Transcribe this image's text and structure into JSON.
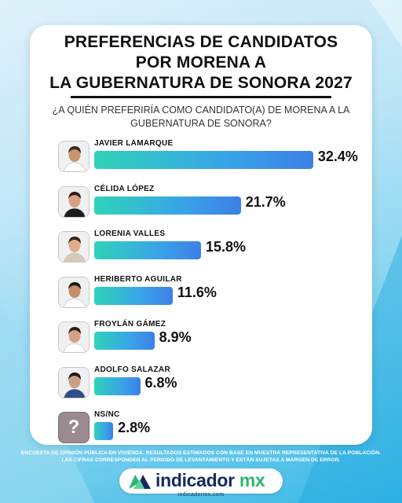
{
  "title": {
    "line1": "PREFERENCIAS DE CANDIDATOS",
    "line2": "POR MORENA A",
    "line3": "LA GUBERNATURA DE SONORA 2027"
  },
  "question": {
    "line1": "¿A QUIÉN PREFERIRÍA COMO CANDIDATO(A) DE MORENA A LA",
    "line2": "GUBERNATURA DE SONORA?"
  },
  "chart_data": {
    "type": "bar",
    "orientation": "horizontal",
    "categories": [
      "JAVIER LAMARQUE",
      "CÉLIDA LÓPEZ",
      "LORENIA VALLES",
      "HERIBERTO AGUILAR",
      "FROYLÁN GÁMEZ",
      "ADOLFO SALAZAR",
      "NS/NC"
    ],
    "values": [
      32.4,
      21.7,
      15.8,
      11.6,
      8.9,
      6.8,
      2.8
    ],
    "labels": [
      "32.4%",
      "21.7%",
      "15.8%",
      "11.6%",
      "8.9%",
      "6.8%",
      "2.8%"
    ],
    "unit": "%",
    "xlim": [
      0,
      33
    ],
    "grid": false,
    "legend": "none",
    "bar_color": "#39a4e8"
  },
  "unknown_avatar_glyph": "?",
  "footnote": {
    "line1": "ENCUESTA DE OPINIÓN PÚBLICA EN VIVIENDA. RESULTADOS ESTIMADOS CON BASE EN MUESTRA REPRESENTATIVA DE LA POBLACIÓN.",
    "line2": "LAS CIFRAS CORRESPONDEN AL PERIODO DE LEVANTAMIENTO Y ESTÁN SUJETAS A MARGEN DE ERROR."
  },
  "brand": {
    "word": "indicador",
    "suffix": " mx",
    "url": "indicadormx.com",
    "primary_color": "#152a5c",
    "accent_color": "#2cb673"
  }
}
